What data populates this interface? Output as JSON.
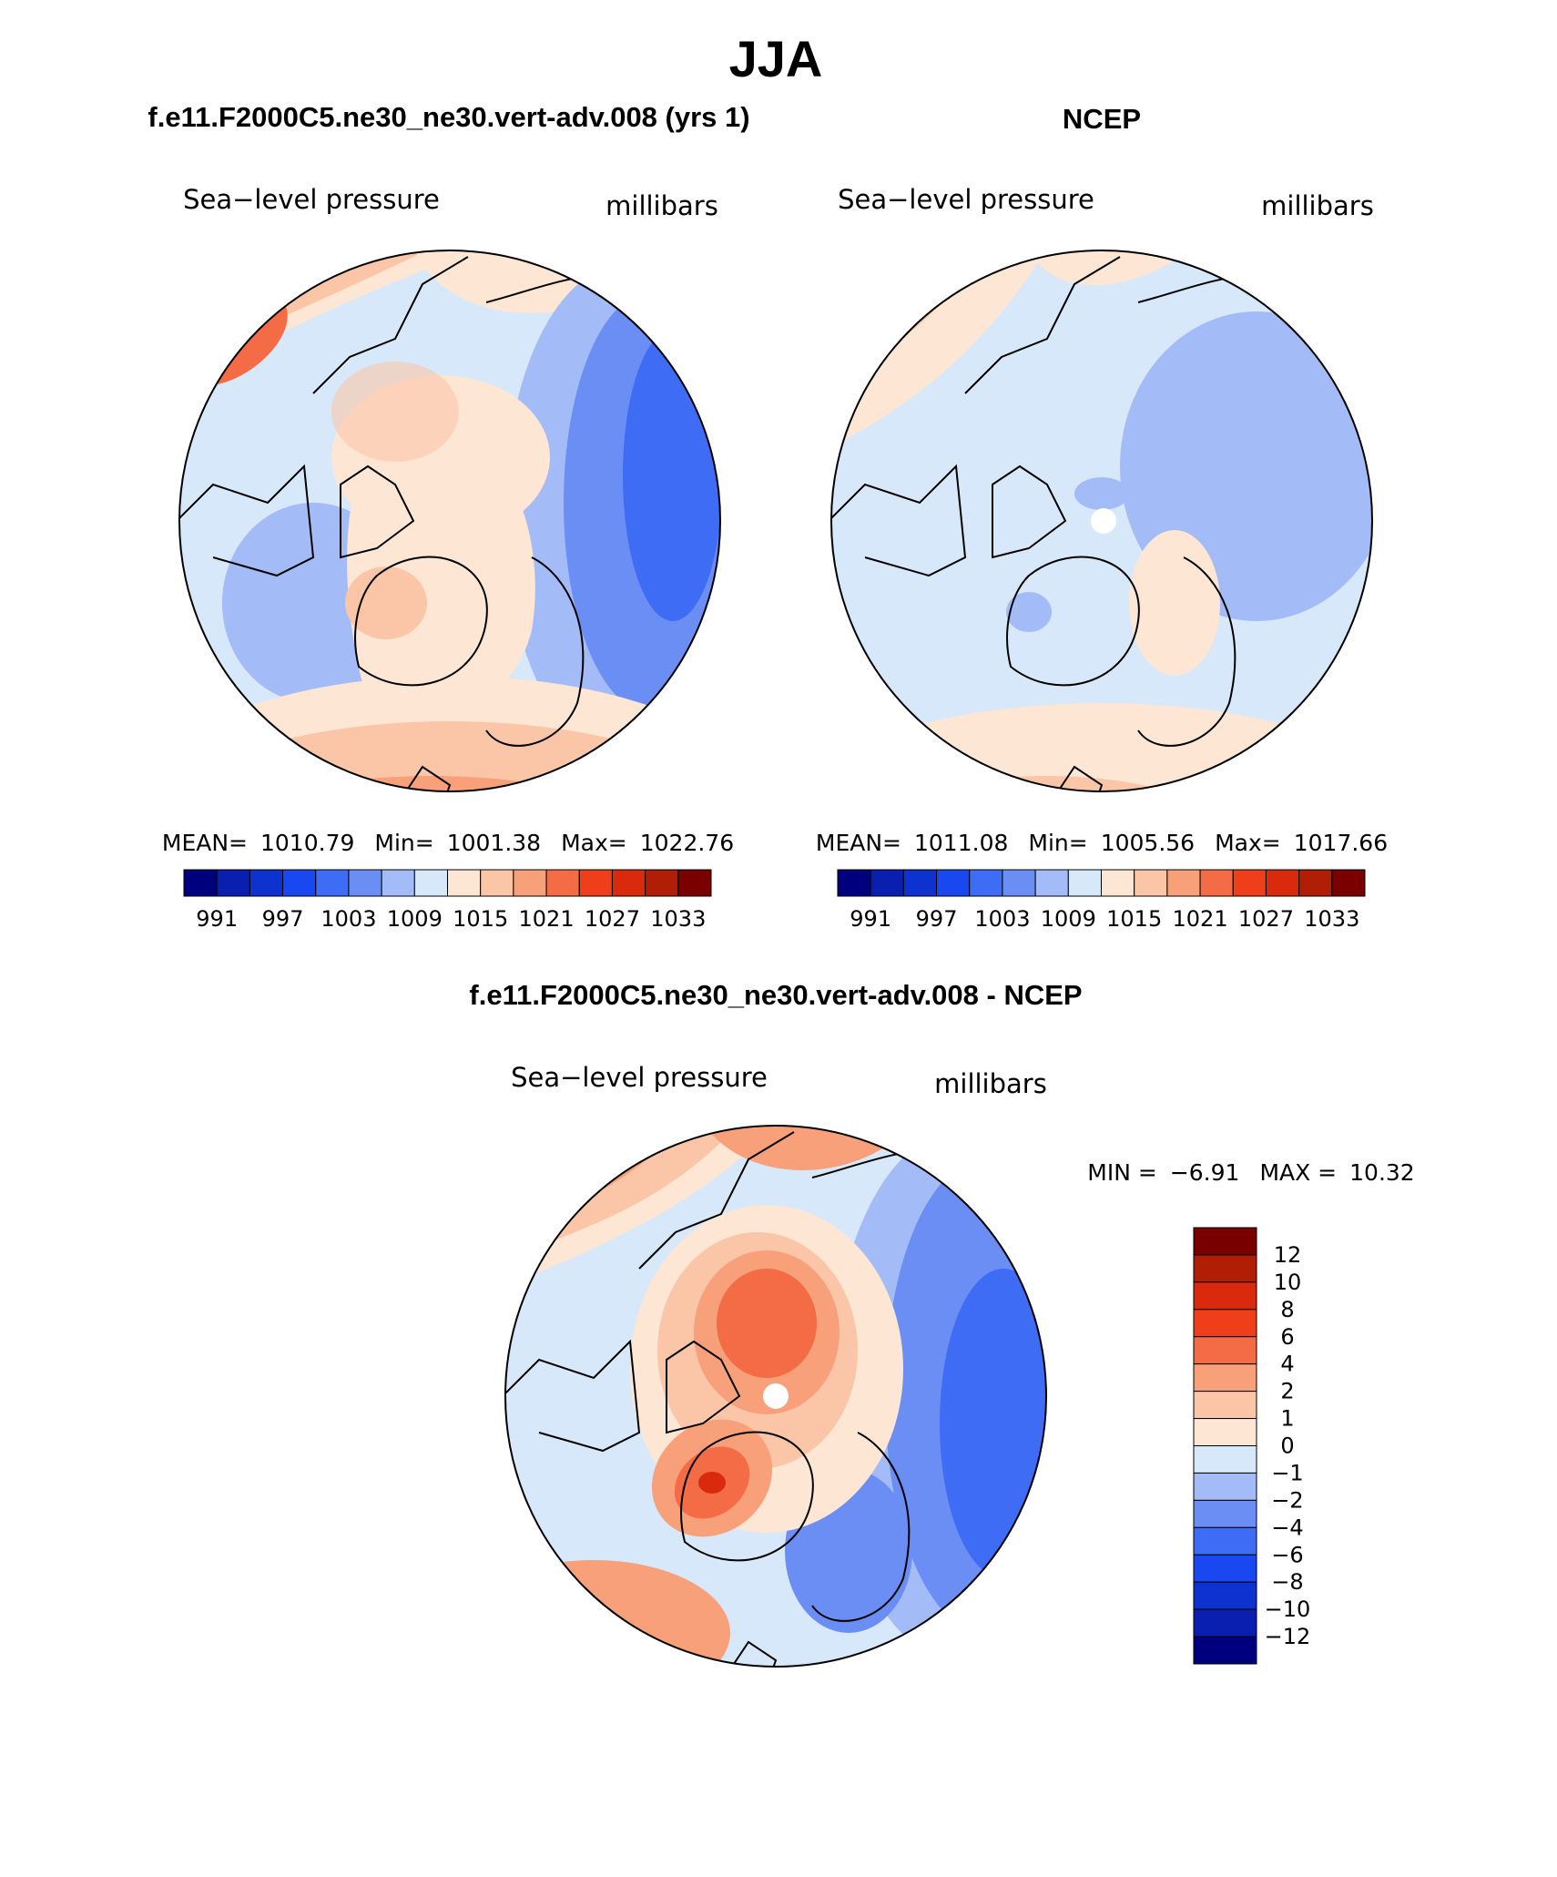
{
  "title": "JJA",
  "panels": [
    {
      "title": "f.e11.F2000C5.ne30_ne30.vert-adv.008 (yrs 1)",
      "variable": "Sea−level pressure",
      "units": "millibars",
      "stats": [
        {
          "label": "MEAN=",
          "value": 1010.79
        },
        {
          "label": "Min=",
          "value": 1001.38
        },
        {
          "label": "Max=",
          "value": 1022.76
        }
      ],
      "colorbar": {
        "labels": [
          991,
          997,
          1003,
          1009,
          1015,
          1021,
          1027,
          1033
        ],
        "colors": [
          "#00007f",
          "#0a1fb0",
          "#0d32d0",
          "#1a48f0",
          "#3e6cf5",
          "#6b8ef5",
          "#a3bcf7",
          "#d7e8fb",
          "#fde6d4",
          "#fbc6a8",
          "#f8a07a",
          "#f46c45",
          "#ef3e1a",
          "#d92a0d",
          "#b01e05",
          "#7a0000"
        ]
      }
    },
    {
      "title": "NCEP",
      "variable": "Sea−level pressure",
      "units": "millibars",
      "stats": [
        {
          "label": "MEAN=",
          "value": 1011.08
        },
        {
          "label": "Min=",
          "value": 1005.56
        },
        {
          "label": "Max=",
          "value": 1017.66
        }
      ],
      "colorbar": {
        "labels": [
          991,
          997,
          1003,
          1009,
          1015,
          1021,
          1027,
          1033
        ],
        "colors": [
          "#00007f",
          "#0a1fb0",
          "#0d32d0",
          "#1a48f0",
          "#3e6cf5",
          "#6b8ef5",
          "#a3bcf7",
          "#d7e8fb",
          "#fde6d4",
          "#fbc6a8",
          "#f8a07a",
          "#f46c45",
          "#ef3e1a",
          "#d92a0d",
          "#b01e05",
          "#7a0000"
        ]
      }
    },
    {
      "title": "f.e11.F2000C5.ne30_ne30.vert-adv.008 - NCEP",
      "variable": "Sea−level pressure",
      "units": "millibars",
      "stats": [
        {
          "label": "MIN =",
          "value": -6.91,
          "value_label": "−6.91"
        },
        {
          "label": "MAX =",
          "value": 10.32
        }
      ],
      "colorbar": {
        "labels": [
          12,
          10,
          8,
          6,
          4,
          2,
          1,
          0,
          {
            "value": -1,
            "label": "−1"
          },
          {
            "value": -2,
            "label": "−2"
          },
          {
            "value": -4,
            "label": "−4"
          },
          {
            "value": -6,
            "label": "−6"
          },
          {
            "value": -8,
            "label": "−8"
          },
          {
            "value": -10,
            "label": "−10"
          },
          {
            "value": -12,
            "label": "−12"
          }
        ],
        "colors": [
          "#7a0000",
          "#b01e05",
          "#d92a0d",
          "#ef3e1a",
          "#f46c45",
          "#f8a07a",
          "#fbc6a8",
          "#fde6d4",
          "#d7e8fb",
          "#a3bcf7",
          "#6b8ef5",
          "#3e6cf5",
          "#1a48f0",
          "#0d32d0",
          "#0a1fb0",
          "#00007f"
        ]
      }
    }
  ]
}
